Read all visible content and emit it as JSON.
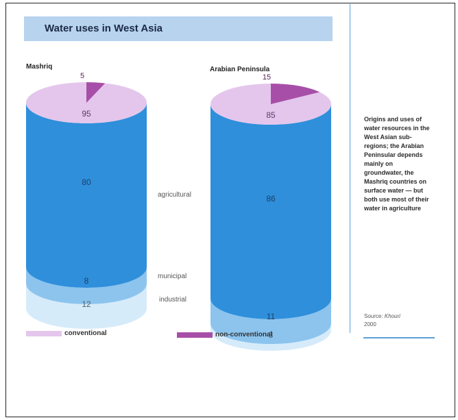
{
  "chart_data": {
    "type": "cylinder",
    "title": "Water uses in West Asia",
    "legend": [
      {
        "name": "conventional",
        "color": "#e4c6ec"
      },
      {
        "name": "non-conventional",
        "color": "#a74fa8"
      }
    ],
    "use_labels": [
      "agricultural",
      "municipal",
      "industrial"
    ],
    "cylinders": [
      {
        "name": "Mashriq",
        "conventional": 95,
        "non_conventional": 5,
        "agricultural": 80,
        "municipal": 8,
        "industrial": 12
      },
      {
        "name": "Arabian Peninsula",
        "conventional": 85,
        "non_conventional": 15,
        "agricultural": 86,
        "municipal": 11,
        "industrial": 3
      }
    ]
  },
  "colors": {
    "agricultural": "#2f8fdb",
    "municipal": "#8cc4ee",
    "industrial": "#d6ebfa",
    "banner": "#b7d3ee"
  },
  "note": "Origins and uses of water resources in the West Asian sub-regions; the Arabian Peninsular depends mainly on groundwater, the Mashriq countries on surface water — but both use most of their water in agriculture",
  "source_label": "Source: ",
  "source_name": "Khouri",
  "source_year": "2000"
}
